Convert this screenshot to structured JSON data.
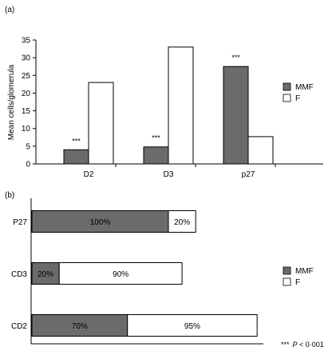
{
  "colors": {
    "mmf": "#6b6b6b",
    "f": "#ffffff",
    "stroke": "#000000"
  },
  "chart_data": [
    {
      "panel": "(a)",
      "type": "bar",
      "categories": [
        "D2",
        "D3",
        "p27"
      ],
      "series": [
        {
          "name": "MMF",
          "values": [
            4,
            4.8,
            27.5
          ]
        },
        {
          "name": "F",
          "values": [
            23,
            33,
            7.7
          ]
        }
      ],
      "annotations": [
        "***",
        "***",
        "***"
      ],
      "ylabel": "Mean cells/glomerula",
      "yticks": [
        "0",
        "5",
        "10",
        "15",
        "20",
        "25",
        "30",
        "35"
      ],
      "ylim": [
        0,
        35
      ],
      "legend": [
        "MMF",
        "F"
      ],
      "legend_position": "right"
    },
    {
      "panel": "(b)",
      "type": "bar",
      "orientation": "horizontal",
      "categories": [
        "P27",
        "CD3",
        "CD2"
      ],
      "series": [
        {
          "name": "MMF",
          "values": [
            100,
            20,
            70
          ],
          "labels": [
            "100%",
            "20%",
            "70%"
          ]
        },
        {
          "name": "F",
          "values": [
            20,
            90,
            95
          ],
          "labels": [
            "20%",
            "90%",
            "95%"
          ]
        }
      ],
      "legend": [
        "MMF",
        "F"
      ],
      "legend_position": "right",
      "footnote_stars": "***",
      "footnote_p": "P",
      "footnote_rest": " < 0·001"
    }
  ]
}
